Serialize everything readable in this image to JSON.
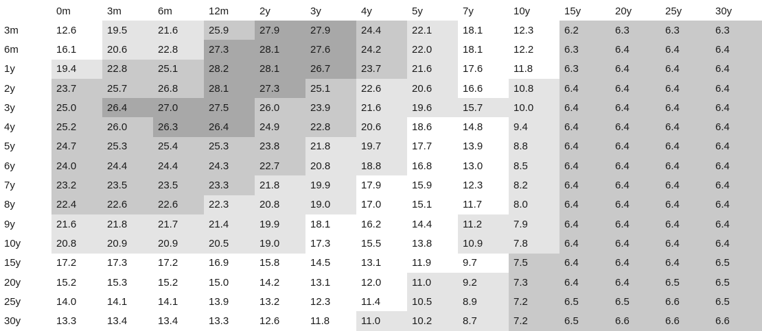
{
  "chart_data": {
    "type": "heatmap",
    "columns": [
      "0m",
      "3m",
      "6m",
      "12m",
      "2y",
      "3y",
      "4y",
      "5y",
      "7y",
      "10y",
      "15y",
      "20y",
      "25y",
      "30y"
    ],
    "rows": [
      "3m",
      "6m",
      "1y",
      "2y",
      "3y",
      "4y",
      "5y",
      "6y",
      "7y",
      "8y",
      "9y",
      "10y",
      "15y",
      "20y",
      "25y",
      "30y"
    ],
    "values": [
      [
        "12.6",
        "19.5",
        "21.6",
        "25.9",
        "27.9",
        "27.9",
        "24.4",
        "22.1",
        "18.1",
        "12.3",
        "6.2",
        "6.3",
        "6.3",
        "6.3"
      ],
      [
        "16.1",
        "20.6",
        "22.8",
        "27.3",
        "28.1",
        "27.6",
        "24.2",
        "22.0",
        "18.1",
        "12.2",
        "6.3",
        "6.4",
        "6.4",
        "6.4"
      ],
      [
        "19.4",
        "22.8",
        "25.1",
        "28.2",
        "28.1",
        "26.7",
        "23.7",
        "21.6",
        "17.6",
        "11.8",
        "6.3",
        "6.4",
        "6.4",
        "6.4"
      ],
      [
        "23.7",
        "25.7",
        "26.8",
        "28.1",
        "27.3",
        "25.1",
        "22.6",
        "20.6",
        "16.6",
        "10.8",
        "6.4",
        "6.4",
        "6.4",
        "6.4"
      ],
      [
        "25.0",
        "26.4",
        "27.0",
        "27.5",
        "26.0",
        "23.9",
        "21.6",
        "19.6",
        "15.7",
        "10.0",
        "6.4",
        "6.4",
        "6.4",
        "6.4"
      ],
      [
        "25.2",
        "26.0",
        "26.3",
        "26.4",
        "24.9",
        "22.8",
        "20.6",
        "18.6",
        "14.8",
        "9.4",
        "6.4",
        "6.4",
        "6.4",
        "6.4"
      ],
      [
        "24.7",
        "25.3",
        "25.4",
        "25.3",
        "23.8",
        "21.8",
        "19.7",
        "17.7",
        "13.9",
        "8.8",
        "6.4",
        "6.4",
        "6.4",
        "6.4"
      ],
      [
        "24.0",
        "24.4",
        "24.4",
        "24.3",
        "22.7",
        "20.8",
        "18.8",
        "16.8",
        "13.0",
        "8.5",
        "6.4",
        "6.4",
        "6.4",
        "6.4"
      ],
      [
        "23.2",
        "23.5",
        "23.5",
        "23.3",
        "21.8",
        "19.9",
        "17.9",
        "15.9",
        "12.3",
        "8.2",
        "6.4",
        "6.4",
        "6.4",
        "6.4"
      ],
      [
        "22.4",
        "22.6",
        "22.6",
        "22.3",
        "20.8",
        "19.0",
        "17.0",
        "15.1",
        "11.7",
        "8.0",
        "6.4",
        "6.4",
        "6.4",
        "6.4"
      ],
      [
        "21.6",
        "21.8",
        "21.7",
        "21.4",
        "19.9",
        "18.1",
        "16.2",
        "14.4",
        "11.2",
        "7.9",
        "6.4",
        "6.4",
        "6.4",
        "6.4"
      ],
      [
        "20.8",
        "20.9",
        "20.9",
        "20.5",
        "19.0",
        "17.3",
        "15.5",
        "13.8",
        "10.9",
        "7.8",
        "6.4",
        "6.4",
        "6.4",
        "6.4"
      ],
      [
        "17.2",
        "17.3",
        "17.2",
        "16.9",
        "15.8",
        "14.5",
        "13.1",
        "11.9",
        "9.7",
        "7.5",
        "6.4",
        "6.4",
        "6.4",
        "6.5"
      ],
      [
        "15.2",
        "15.3",
        "15.2",
        "15.0",
        "14.2",
        "13.1",
        "12.0",
        "11.0",
        "9.2",
        "7.3",
        "6.4",
        "6.4",
        "6.5",
        "6.5"
      ],
      [
        "14.0",
        "14.1",
        "14.1",
        "13.9",
        "13.2",
        "12.3",
        "11.4",
        "10.5",
        "8.9",
        "7.2",
        "6.5",
        "6.5",
        "6.6",
        "6.5"
      ],
      [
        "13.3",
        "13.4",
        "13.4",
        "13.3",
        "12.6",
        "11.8",
        "11.0",
        "10.2",
        "8.7",
        "7.2",
        "6.5",
        "6.6",
        "6.6",
        "6.6"
      ]
    ],
    "shade_levels": [
      [
        0,
        1,
        1,
        2,
        3,
        3,
        2,
        1,
        0,
        0,
        2,
        2,
        2,
        2
      ],
      [
        0,
        1,
        1,
        3,
        3,
        3,
        2,
        1,
        0,
        0,
        2,
        2,
        2,
        2
      ],
      [
        1,
        2,
        2,
        3,
        3,
        3,
        2,
        1,
        0,
        0,
        2,
        2,
        2,
        2
      ],
      [
        2,
        2,
        2,
        3,
        3,
        2,
        1,
        1,
        0,
        1,
        2,
        2,
        2,
        2
      ],
      [
        2,
        3,
        3,
        3,
        2,
        2,
        1,
        1,
        1,
        1,
        2,
        2,
        2,
        2
      ],
      [
        2,
        2,
        3,
        3,
        2,
        2,
        1,
        0,
        0,
        1,
        2,
        2,
        2,
        2
      ],
      [
        2,
        2,
        2,
        2,
        2,
        1,
        1,
        0,
        0,
        1,
        2,
        2,
        2,
        2
      ],
      [
        2,
        2,
        2,
        2,
        2,
        1,
        1,
        0,
        0,
        1,
        2,
        2,
        2,
        2
      ],
      [
        2,
        2,
        2,
        2,
        1,
        1,
        0,
        0,
        0,
        1,
        2,
        2,
        2,
        2
      ],
      [
        2,
        2,
        2,
        1,
        1,
        1,
        0,
        0,
        0,
        1,
        2,
        2,
        2,
        2
      ],
      [
        1,
        1,
        1,
        1,
        1,
        0,
        0,
        0,
        1,
        1,
        2,
        2,
        2,
        2
      ],
      [
        1,
        1,
        1,
        1,
        1,
        0,
        0,
        0,
        1,
        1,
        2,
        2,
        2,
        2
      ],
      [
        0,
        0,
        0,
        0,
        0,
        0,
        0,
        0,
        0,
        2,
        2,
        2,
        2,
        2
      ],
      [
        0,
        0,
        0,
        0,
        0,
        0,
        0,
        1,
        1,
        2,
        2,
        2,
        2,
        2
      ],
      [
        0,
        0,
        0,
        0,
        0,
        0,
        0,
        1,
        1,
        2,
        2,
        2,
        2,
        2
      ],
      [
        0,
        0,
        0,
        0,
        0,
        0,
        1,
        1,
        1,
        2,
        2,
        2,
        2,
        2
      ]
    ],
    "colors": [
      "#ffffff",
      "#e4e4e4",
      "#c9c9c9",
      "#a8a8a8"
    ],
    "text_color": "#1a1a1a"
  }
}
